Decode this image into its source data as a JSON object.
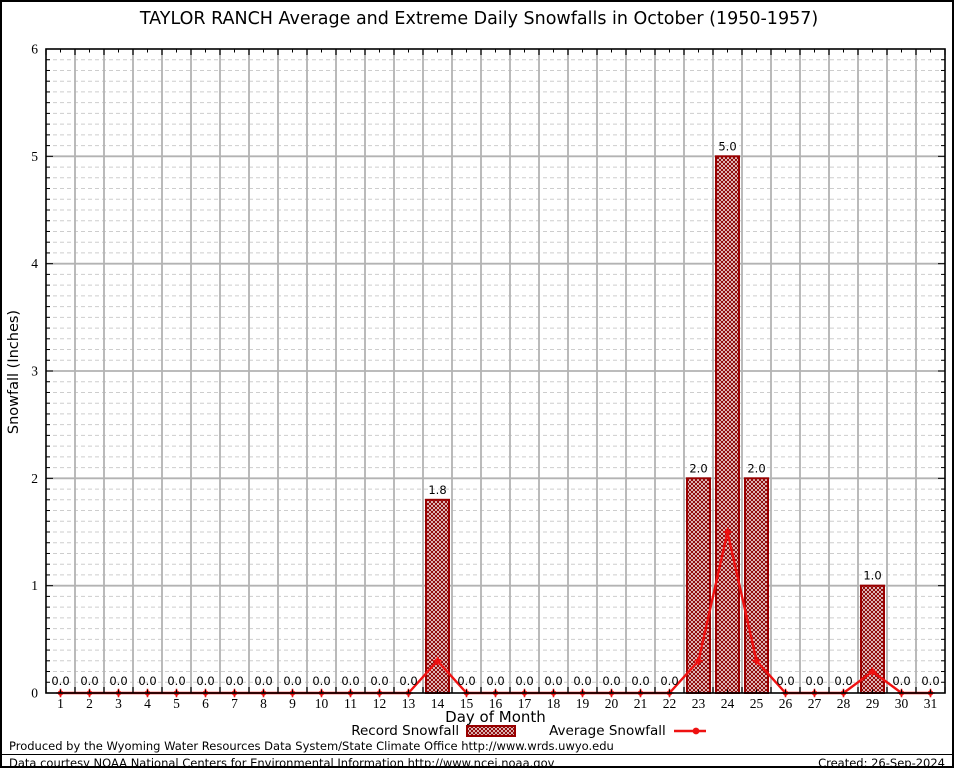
{
  "title": "TAYLOR RANCH Average and Extreme Daily Snowfalls in October (1950-1957)",
  "chart_data": {
    "type": "bar",
    "title": "TAYLOR RANCH Average and Extreme Daily Snowfalls in October (1950-1957)",
    "xlabel": "Day of Month",
    "ylabel": "Snowfall (Inches)",
    "x": [
      1,
      2,
      3,
      4,
      5,
      6,
      7,
      8,
      9,
      10,
      11,
      12,
      13,
      14,
      15,
      16,
      17,
      18,
      19,
      20,
      21,
      22,
      23,
      24,
      25,
      26,
      27,
      28,
      29,
      30,
      31
    ],
    "series": [
      {
        "name": "Record Snowfall",
        "type": "bar",
        "values": [
          0,
          0,
          0,
          0,
          0,
          0,
          0,
          0,
          0,
          0,
          0,
          0,
          0,
          1.8,
          0,
          0,
          0,
          0,
          0,
          0,
          0,
          0,
          2.0,
          5.0,
          2.0,
          0,
          0,
          0,
          1.0,
          0,
          0
        ]
      },
      {
        "name": "Average Snowfall",
        "type": "line",
        "values": [
          0,
          0,
          0,
          0,
          0,
          0,
          0,
          0,
          0,
          0,
          0,
          0,
          0,
          0.3,
          0,
          0,
          0,
          0,
          0,
          0,
          0,
          0,
          0.3,
          1.5,
          0.3,
          0,
          0,
          0,
          0.2,
          0,
          0
        ]
      }
    ],
    "value_labels": [
      "0.0",
      "0.0",
      "0.0",
      "0.0",
      "0.0",
      "0.0",
      "0.0",
      "0.0",
      "0.0",
      "0.0",
      "0.0",
      "0.0",
      "0.0",
      "1.8",
      "0.0",
      "0.0",
      "0.0",
      "0.0",
      "0.0",
      "0.0",
      "0.0",
      "0.0",
      "2.0",
      "5.0",
      "2.0",
      "0.0",
      "0.0",
      "0.0",
      "1.0",
      "0.0",
      "0.0"
    ],
    "ylim": [
      0,
      6
    ],
    "yticks": [
      0,
      1,
      2,
      3,
      4,
      5,
      6
    ],
    "grid": true,
    "legend_position": "bottom",
    "colors": {
      "bar_border": "#990000",
      "bar_hatch": "#8b0000",
      "line": "#ee1111",
      "grid_major": "#b3b3b3",
      "grid_minor": "#cdcdcd",
      "frame": "#000000"
    }
  },
  "legend": {
    "record_label": "Record Snowfall",
    "average_label": "Average Snowfall"
  },
  "footer": {
    "line1": "Produced by the Wyoming Water Resources Data System/State Climate Office http://www.wrds.uwyo.edu",
    "line2": "Data courtesy NOAA National Centers for Environmental Information http://www.ncei.noaa.gov",
    "created": "Created: 26-Sep-2024"
  }
}
